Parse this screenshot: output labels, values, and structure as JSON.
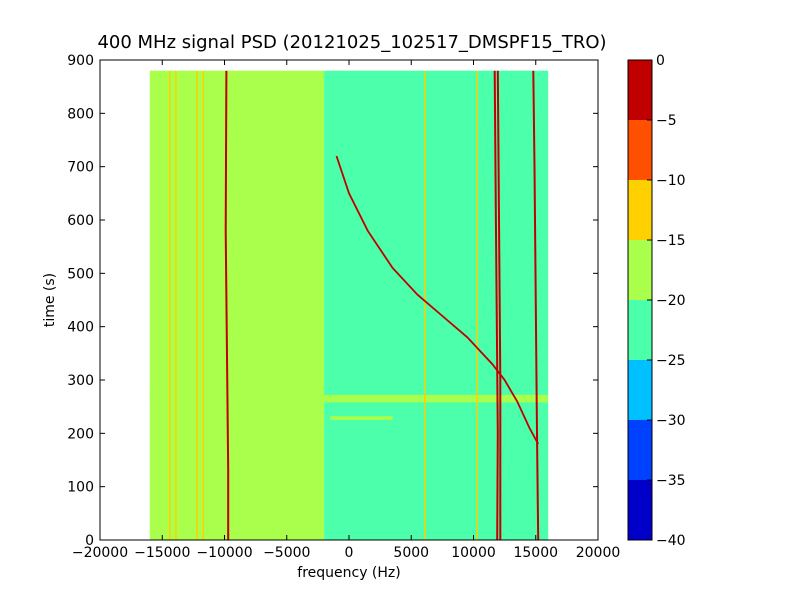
{
  "chart_data": {
    "type": "heatmap",
    "title": "400 MHz signal PSD (20121025_102517_DMSPF15_TRO)",
    "xlabel": "frequency (Hz)",
    "ylabel": "time (s)",
    "xlim": [
      -20000,
      20000
    ],
    "ylim": [
      0,
      900
    ],
    "x_ticks": [
      -20000,
      -15000,
      -10000,
      -5000,
      0,
      5000,
      10000,
      15000,
      20000
    ],
    "y_ticks": [
      0,
      100,
      200,
      300,
      400,
      500,
      600,
      700,
      800,
      900
    ],
    "data_extent": {
      "x": [
        -16000,
        16000
      ],
      "y": [
        0,
        880
      ]
    },
    "colorbar": {
      "levels": [
        -40,
        -35,
        -30,
        -25,
        -20,
        -15,
        -10,
        -5,
        0
      ],
      "colors": [
        "#0000c8",
        "#0040ff",
        "#00c0ff",
        "#4cffaa",
        "#aaff4c",
        "#ffd000",
        "#ff5000",
        "#c00000"
      ],
      "tick_labels": [
        "−40",
        "−35",
        "−30",
        "−25",
        "−20",
        "−15",
        "−10",
        "−5",
        "0"
      ]
    },
    "background_regions": [
      {
        "x": [
          -16000,
          -2000
        ],
        "level": -17.5
      },
      {
        "x": [
          -2000,
          16000
        ],
        "level": -22.5
      }
    ],
    "horizontal_bands": [
      {
        "x": [
          -16000,
          16000
        ],
        "y": [
          258,
          272
        ],
        "level": -17.5
      },
      {
        "x": [
          -1500,
          3500
        ],
        "y": [
          225,
          232
        ],
        "level": -17.5
      }
    ],
    "carrier_lines": [
      {
        "name": "",
        "points": [
          [
            -14400,
            0
          ],
          [
            -14400,
            880
          ]
        ],
        "level": -12.5
      },
      {
        "name": "",
        "points": [
          [
            -13900,
            0
          ],
          [
            -13900,
            880
          ]
        ],
        "level": -12.5
      },
      {
        "name": "",
        "points": [
          [
            -12200,
            0
          ],
          [
            -12200,
            880
          ]
        ],
        "level": -12.5
      },
      {
        "name": "",
        "points": [
          [
            -11700,
            0
          ],
          [
            -11700,
            880
          ]
        ],
        "level": -12.5
      },
      {
        "name": "",
        "points": [
          [
            -9700,
            0
          ],
          [
            -9700,
            130
          ],
          [
            -9900,
            580
          ],
          [
            -9850,
            880
          ]
        ],
        "level": -2.5
      },
      {
        "name": "",
        "points": [
          [
            6100,
            0
          ],
          [
            6100,
            880
          ]
        ],
        "level": -12.5
      },
      {
        "name": "",
        "points": [
          [
            10300,
            0
          ],
          [
            10300,
            880
          ]
        ],
        "level": -12.5
      },
      {
        "name": "",
        "points": [
          [
            11900,
            0
          ],
          [
            11950,
            200
          ],
          [
            11800,
            600
          ],
          [
            11700,
            880
          ]
        ],
        "level": -2.5
      },
      {
        "name": "",
        "points": [
          [
            12150,
            0
          ],
          [
            12150,
            300
          ],
          [
            11950,
            880
          ]
        ],
        "level": -2.5
      },
      {
        "name": "",
        "points": [
          [
            15200,
            0
          ],
          [
            15100,
            200
          ],
          [
            14900,
            700
          ],
          [
            14800,
            880
          ]
        ],
        "level": -2.5
      }
    ],
    "doppler_trace": {
      "points": [
        [
          -1000,
          720
        ],
        [
          0,
          650
        ],
        [
          1500,
          580
        ],
        [
          3500,
          510
        ],
        [
          5500,
          460
        ],
        [
          7500,
          420
        ],
        [
          9500,
          380
        ],
        [
          11500,
          330
        ],
        [
          12500,
          300
        ],
        [
          13500,
          260
        ],
        [
          14500,
          210
        ],
        [
          15200,
          180
        ]
      ],
      "level": -2.5
    }
  }
}
